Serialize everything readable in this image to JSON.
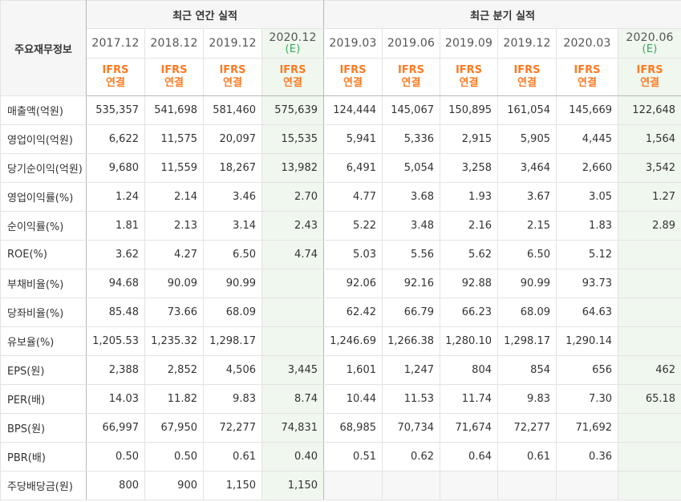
{
  "header": {
    "corner_label": "주요재무정보",
    "annual_title": "최근 연간 실적",
    "quarter_title": "최근 분기 실적",
    "annual_periods": [
      {
        "label": "2017.12",
        "est": ""
      },
      {
        "label": "2018.12",
        "est": ""
      },
      {
        "label": "2019.12",
        "est": ""
      },
      {
        "label": "2020.12",
        "est": "(E)"
      }
    ],
    "quarter_periods": [
      {
        "label": "2019.03",
        "est": ""
      },
      {
        "label": "2019.06",
        "est": ""
      },
      {
        "label": "2019.09",
        "est": ""
      },
      {
        "label": "2019.12",
        "est": ""
      },
      {
        "label": "2020.03",
        "est": ""
      },
      {
        "label": "2020.06",
        "est": "(E)"
      }
    ],
    "std_line1": "IFRS",
    "std_line2": "연결"
  },
  "rows": [
    {
      "label": "매출액(억원)",
      "annual": [
        "535,357",
        "541,698",
        "581,460",
        "575,639"
      ],
      "quarter": [
        "124,444",
        "145,067",
        "150,895",
        "161,054",
        "145,669",
        "122,648"
      ]
    },
    {
      "label": "영업이익(억원)",
      "annual": [
        "6,622",
        "11,575",
        "20,097",
        "15,535"
      ],
      "quarter": [
        "5,941",
        "5,336",
        "2,915",
        "5,905",
        "4,445",
        "1,564"
      ]
    },
    {
      "label": "당기순이익(억원)",
      "annual": [
        "9,680",
        "11,559",
        "18,267",
        "13,982"
      ],
      "quarter": [
        "6,491",
        "5,054",
        "3,258",
        "3,464",
        "2,660",
        "3,542"
      ]
    },
    {
      "label": "영업이익률(%)",
      "annual": [
        "1.24",
        "2.14",
        "3.46",
        "2.70"
      ],
      "quarter": [
        "4.77",
        "3.68",
        "1.93",
        "3.67",
        "3.05",
        "1.27"
      ]
    },
    {
      "label": "순이익률(%)",
      "annual": [
        "1.81",
        "2.13",
        "3.14",
        "2.43"
      ],
      "quarter": [
        "5.22",
        "3.48",
        "2.16",
        "2.15",
        "1.83",
        "2.89"
      ]
    },
    {
      "label": "ROE(%)",
      "annual": [
        "3.62",
        "4.27",
        "6.50",
        "4.74"
      ],
      "quarter": [
        "5.03",
        "5.56",
        "5.62",
        "6.50",
        "5.12",
        ""
      ]
    },
    {
      "label": "부채비율(%)",
      "annual": [
        "94.68",
        "90.09",
        "90.99",
        ""
      ],
      "quarter": [
        "92.06",
        "92.16",
        "92.88",
        "90.99",
        "93.73",
        ""
      ]
    },
    {
      "label": "당좌비율(%)",
      "annual": [
        "85.48",
        "73.66",
        "68.09",
        ""
      ],
      "quarter": [
        "62.42",
        "66.79",
        "66.23",
        "68.09",
        "64.63",
        ""
      ]
    },
    {
      "label": "유보율(%)",
      "annual": [
        "1,205.53",
        "1,235.32",
        "1,298.17",
        ""
      ],
      "quarter": [
        "1,246.69",
        "1,266.38",
        "1,280.10",
        "1,298.17",
        "1,290.14",
        ""
      ]
    },
    {
      "label": "EPS(원)",
      "annual": [
        "2,388",
        "2,852",
        "4,506",
        "3,445"
      ],
      "quarter": [
        "1,601",
        "1,247",
        "804",
        "854",
        "656",
        "462"
      ]
    },
    {
      "label": "PER(배)",
      "annual": [
        "14.03",
        "11.82",
        "9.83",
        "8.74"
      ],
      "quarter": [
        "10.44",
        "11.53",
        "11.74",
        "9.83",
        "7.30",
        "65.18"
      ]
    },
    {
      "label": "BPS(원)",
      "annual": [
        "66,997",
        "67,950",
        "72,277",
        "74,831"
      ],
      "quarter": [
        "68,985",
        "70,734",
        "71,674",
        "72,277",
        "71,692",
        ""
      ]
    },
    {
      "label": "PBR(배)",
      "annual": [
        "0.50",
        "0.50",
        "0.61",
        "0.40"
      ],
      "quarter": [
        "0.51",
        "0.62",
        "0.64",
        "0.61",
        "0.36",
        ""
      ]
    },
    {
      "label": "주당배당금(원)",
      "annual": [
        "800",
        "900",
        "1,150",
        "1,150"
      ],
      "quarter": [
        "",
        "",
        "",
        "",
        "",
        ""
      ]
    }
  ]
}
